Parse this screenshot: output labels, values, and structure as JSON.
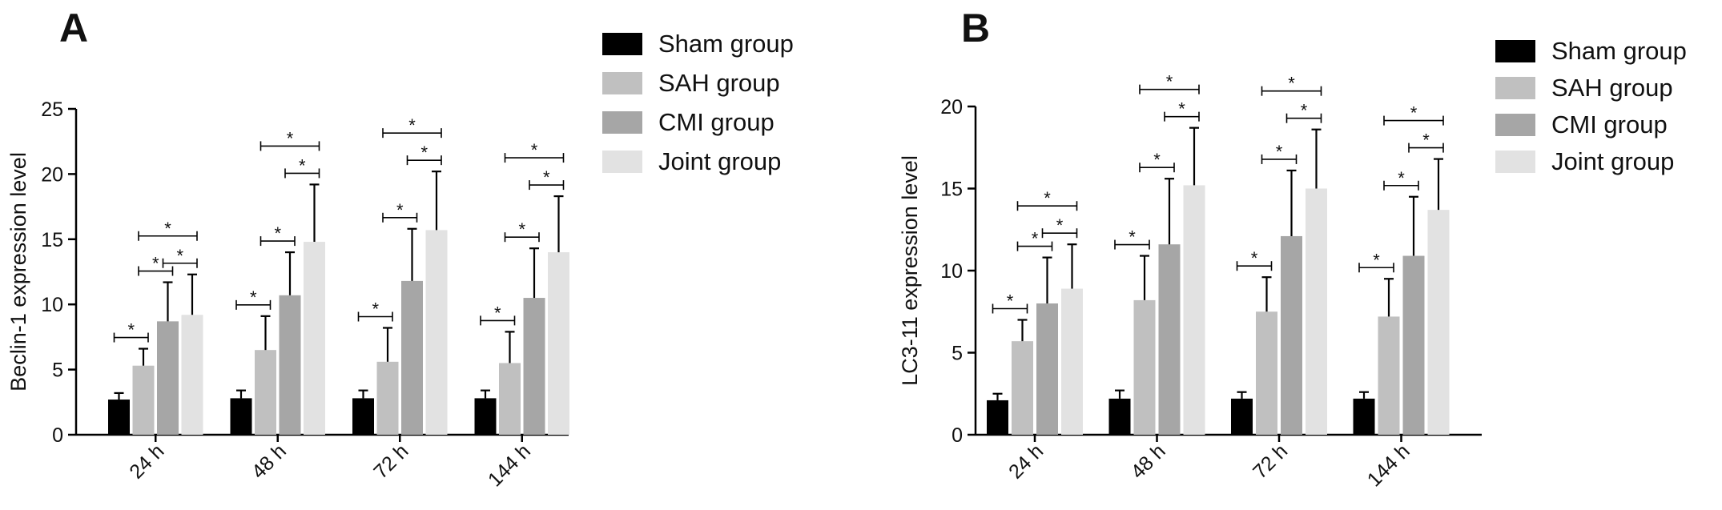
{
  "chart_data": [
    {
      "type": "bar",
      "panel_label": "A",
      "ylabel": "Beclin-1 expression level",
      "xlabel": "",
      "categories": [
        "24 h",
        "48 h",
        "72 h",
        "144 h"
      ],
      "ylim": [
        0,
        25
      ],
      "yticks": [
        "0",
        "5",
        "10",
        "15",
        "20",
        "25"
      ],
      "series": [
        {
          "name": "Sham group",
          "color": "#000000",
          "values": [
            2.7,
            2.8,
            2.8,
            2.8
          ],
          "errors": [
            0.5,
            0.6,
            0.6,
            0.6
          ]
        },
        {
          "name": "SAH group",
          "color": "#c0c0c0",
          "values": [
            5.3,
            6.5,
            5.6,
            5.5
          ],
          "errors": [
            1.3,
            2.6,
            2.6,
            2.4
          ]
        },
        {
          "name": "CMI group",
          "color": "#a6a6a6",
          "values": [
            8.7,
            10.7,
            11.8,
            10.5
          ],
          "errors": [
            3.0,
            3.3,
            4.0,
            3.8
          ]
        },
        {
          "name": "Joint group",
          "color": "#e2e2e2",
          "values": [
            9.2,
            14.8,
            15.7,
            14.0
          ],
          "errors": [
            3.1,
            4.4,
            4.5,
            4.3
          ]
        }
      ],
      "significance_marker": "*",
      "legend_position": "top-right"
    },
    {
      "type": "bar",
      "panel_label": "B",
      "ylabel": "LC3-11 expression level",
      "xlabel": "",
      "categories": [
        "24 h",
        "48 h",
        "72 h",
        "144 h"
      ],
      "ylim": [
        0,
        20
      ],
      "yticks": [
        "0",
        "5",
        "10",
        "15",
        "20"
      ],
      "series": [
        {
          "name": "Sham group",
          "color": "#000000",
          "values": [
            2.1,
            2.2,
            2.2,
            2.2
          ],
          "errors": [
            0.4,
            0.5,
            0.4,
            0.4
          ]
        },
        {
          "name": "SAH group",
          "color": "#c0c0c0",
          "values": [
            5.7,
            8.2,
            7.5,
            7.2
          ],
          "errors": [
            1.3,
            2.7,
            2.1,
            2.3
          ]
        },
        {
          "name": "CMI group",
          "color": "#a6a6a6",
          "values": [
            8.0,
            11.6,
            12.1,
            10.9
          ],
          "errors": [
            2.8,
            4.0,
            4.0,
            3.6
          ]
        },
        {
          "name": "Joint group",
          "color": "#e2e2e2",
          "values": [
            8.9,
            15.2,
            15.0,
            13.7
          ],
          "errors": [
            2.7,
            3.5,
            3.6,
            3.1
          ]
        }
      ],
      "significance_marker": "*",
      "legend_position": "top-right"
    }
  ]
}
